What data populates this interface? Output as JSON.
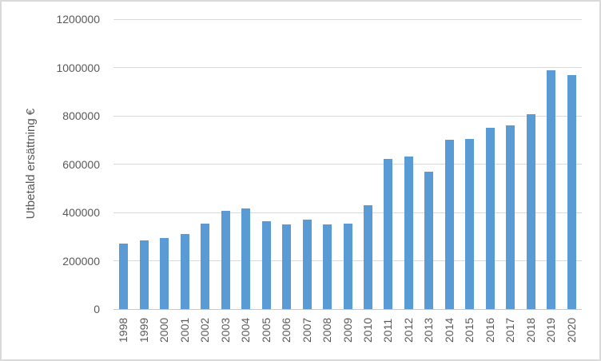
{
  "chart_data": {
    "type": "bar",
    "title": "",
    "xlabel": "",
    "ylabel": "Utbetald ersättning €",
    "categories": [
      "1998",
      "1999",
      "2000",
      "2001",
      "2002",
      "2003",
      "2004",
      "2005",
      "2006",
      "2007",
      "2008",
      "2009",
      "2010",
      "2011",
      "2012",
      "2013",
      "2014",
      "2015",
      "2016",
      "2017",
      "2018",
      "2019",
      "2020"
    ],
    "values": [
      270000,
      285000,
      295000,
      310000,
      355000,
      405000,
      415000,
      365000,
      350000,
      370000,
      350000,
      355000,
      430000,
      620000,
      630000,
      570000,
      700000,
      705000,
      750000,
      760000,
      805000,
      990000,
      970000
    ],
    "ytick_labels": [
      "0",
      "200000",
      "400000",
      "600000",
      "800000",
      "1000000",
      "1200000"
    ],
    "ylim": [
      0,
      1200000
    ],
    "ytick_interval": 200000,
    "grid": true,
    "legend": false,
    "bar_color": "#5b9bd5",
    "grid_color": "#d9d9d9",
    "axis_line_color": "#c8c8c8",
    "text_color": "#595959",
    "background_color": "#ffffff",
    "border_color": "#d9d9d9"
  }
}
